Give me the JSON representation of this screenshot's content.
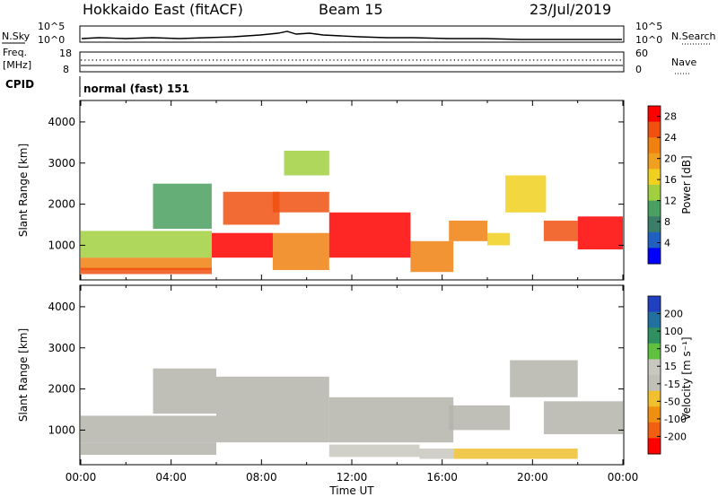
{
  "header": {
    "station": "Hokkaido East (fitACF)",
    "beam": "Beam 15",
    "date": "23/Jul/2019"
  },
  "noise_panel": {
    "left_label": "N.Sky",
    "right_label": "N.Search",
    "ticks_left": [
      "10^5",
      "10^0"
    ],
    "ticks_right": [
      "10^5",
      "10^0"
    ]
  },
  "freq_panel": {
    "left_label_1": "Freq.",
    "left_label_2": "[MHz]",
    "right_label": "Nave",
    "ticks_left": [
      "18",
      "8"
    ],
    "ticks_right": [
      "60",
      "0"
    ]
  },
  "cpid_panel": {
    "label": "CPID",
    "program": "normal (fast) 151"
  },
  "colors": {
    "power_scale": [
      "#0000ff",
      "#2060c0",
      "#3a7e6a",
      "#4aa060",
      "#a0d040",
      "#f0d020",
      "#f0a020",
      "#f08010",
      "#f05010",
      "#ff0000"
    ],
    "velocity_scale": [
      "#2040c0",
      "#2070a0",
      "#309060",
      "#60c040",
      "#c8c8c0",
      "#c0c0b8",
      "#f0c030",
      "#f09010",
      "#f06010",
      "#ff0000"
    ],
    "ground_scatter": "#b4b4ac"
  },
  "chart_data": [
    {
      "type": "heatmap",
      "name": "power",
      "ylabel": "Slant Range [km]",
      "yticks": [
        "1000",
        "2000",
        "3000",
        "4000"
      ],
      "ylim": [
        180,
        4500
      ],
      "x_range_hours": [
        0,
        24
      ],
      "colorbar": {
        "label": "Power [dB]",
        "ticks": [
          "4",
          "8",
          "12",
          "16",
          "20",
          "24",
          "28"
        ],
        "range": [
          0,
          30
        ]
      },
      "regions": [
        {
          "t": [
            0,
            5.8
          ],
          "r": [
            700,
            1350
          ],
          "value": 13
        },
        {
          "t": [
            0,
            5.8
          ],
          "r": [
            400,
            700
          ],
          "value": 21
        },
        {
          "t": [
            0,
            5.8
          ],
          "r": [
            300,
            450
          ],
          "value": 25
        },
        {
          "t": [
            3.2,
            5.8
          ],
          "r": [
            1400,
            2500
          ],
          "value": 9
        },
        {
          "t": [
            5.8,
            8.5
          ],
          "r": [
            700,
            1300
          ],
          "value": 27
        },
        {
          "t": [
            6.3,
            8.8
          ],
          "r": [
            1500,
            2300
          ],
          "value": 24
        },
        {
          "t": [
            8.5,
            11
          ],
          "r": [
            400,
            1300
          ],
          "value": 22
        },
        {
          "t": [
            8.5,
            11
          ],
          "r": [
            1800,
            2300
          ],
          "value": 24
        },
        {
          "t": [
            9,
            11
          ],
          "r": [
            2700,
            3300
          ],
          "value": 14
        },
        {
          "t": [
            11,
            14.6
          ],
          "r": [
            700,
            1800
          ],
          "value": 29
        },
        {
          "t": [
            14.6,
            16.5
          ],
          "r": [
            350,
            1100
          ],
          "value": 23
        },
        {
          "t": [
            16.3,
            18
          ],
          "r": [
            1100,
            1600
          ],
          "value": 22
        },
        {
          "t": [
            18,
            19
          ],
          "r": [
            1000,
            1300
          ],
          "value": 15
        },
        {
          "t": [
            18.8,
            20.6
          ],
          "r": [
            1800,
            2700
          ],
          "value": 16
        },
        {
          "t": [
            20.5,
            22
          ],
          "r": [
            1100,
            1600
          ],
          "value": 25
        },
        {
          "t": [
            22,
            24
          ],
          "r": [
            900,
            1700
          ],
          "value": 28
        }
      ]
    },
    {
      "type": "heatmap",
      "name": "velocity",
      "ylabel": "Slant Range [km]",
      "xlabel": "Time UT",
      "xticks": [
        "00:00",
        "04:00",
        "08:00",
        "12:00",
        "16:00",
        "20:00",
        "00:00"
      ],
      "yticks": [
        "1000",
        "2000",
        "3000",
        "4000"
      ],
      "ylim": [
        180,
        4500
      ],
      "x_range_hours": [
        0,
        24
      ],
      "colorbar": {
        "label": "Velocity [m s⁻¹]",
        "ticks": [
          "200",
          "100",
          "50",
          "15",
          "-15",
          "-50",
          "-100",
          "-200"
        ],
        "range": [
          -250,
          250
        ]
      },
      "regions": [
        {
          "t": [
            0,
            6
          ],
          "r": [
            700,
            1350
          ],
          "value": "gs"
        },
        {
          "t": [
            0,
            6
          ],
          "r": [
            400,
            700
          ],
          "value": "gs"
        },
        {
          "t": [
            3.2,
            6
          ],
          "r": [
            1400,
            2500
          ],
          "value": "gs"
        },
        {
          "t": [
            6,
            11
          ],
          "r": [
            700,
            2300
          ],
          "value": "gs"
        },
        {
          "t": [
            11,
            16.5
          ],
          "r": [
            700,
            1800
          ],
          "value": "gs"
        },
        {
          "t": [
            11,
            15
          ],
          "r": [
            350,
            650
          ],
          "value": 30
        },
        {
          "t": [
            15,
            16.5
          ],
          "r": [
            300,
            550
          ],
          "value": 25
        },
        {
          "t": [
            16.3,
            19
          ],
          "r": [
            1000,
            1600
          ],
          "value": "gs"
        },
        {
          "t": [
            16.5,
            22
          ],
          "r": [
            300,
            550
          ],
          "value": -60
        },
        {
          "t": [
            19,
            22
          ],
          "r": [
            1800,
            2700
          ],
          "value": "gs"
        },
        {
          "t": [
            20.5,
            24
          ],
          "r": [
            900,
            1700
          ],
          "value": "gs"
        }
      ]
    }
  ]
}
